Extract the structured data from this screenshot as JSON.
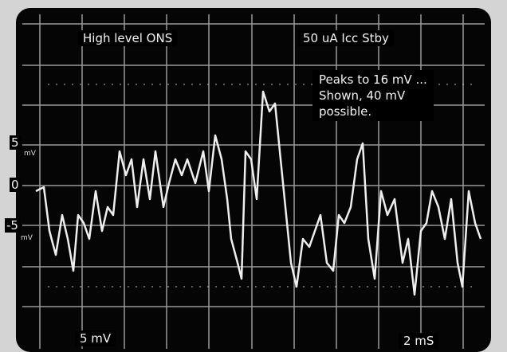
{
  "header": {
    "left": "High level ONS",
    "right": "50 uA Icc Stby"
  },
  "note": {
    "lines": [
      "Peaks to 16 mV ...",
      "Shown, 40 mV",
      "possible."
    ]
  },
  "scale_labels": {
    "upper": "5",
    "upper_unit": "mV",
    "zero": "0",
    "lower": "-5",
    "lower_unit": "mV"
  },
  "footer": {
    "volts": "5 mV",
    "time": "2 mS"
  }
}
